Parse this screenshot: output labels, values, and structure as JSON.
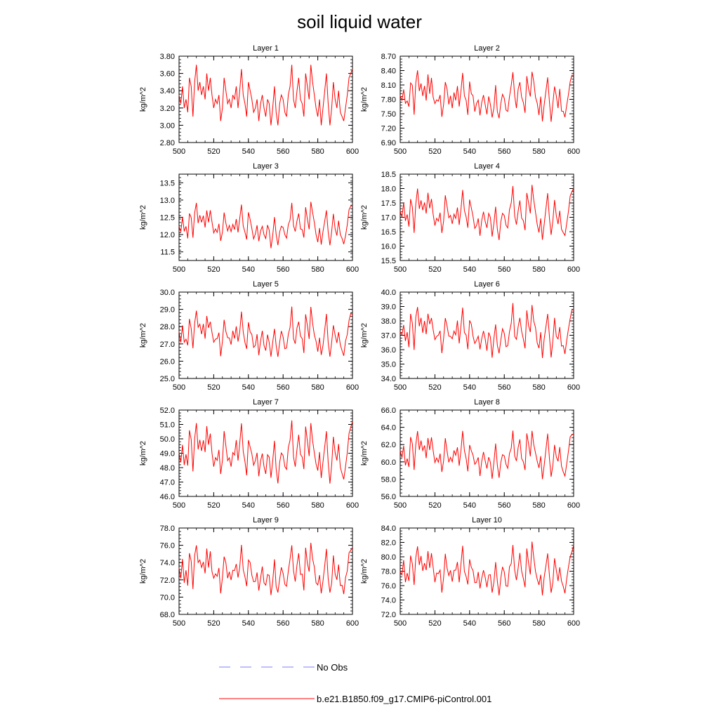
{
  "title": "soil liquid water",
  "colors": {
    "series": "#ff0000",
    "obs": "#7f7fff",
    "axis": "#000000"
  },
  "legend": {
    "obs_label": "No Obs",
    "model_label": "b.e21.B1850.f09_g17.CMIP6-piControl.001"
  },
  "chart_data": [
    {
      "type": "line",
      "title": "Layer 1",
      "ylabel": "kg/m^2",
      "xlim": [
        500,
        600
      ],
      "ylim": [
        2.8,
        3.8
      ],
      "xticks": [
        500,
        520,
        540,
        560,
        580,
        600
      ],
      "xtick_labels": [
        "500",
        "520",
        "540",
        "560",
        "580",
        "600"
      ],
      "yticks": [
        2.8,
        3.0,
        3.2,
        3.4,
        3.6,
        3.8
      ],
      "ytick_labels": [
        "2.80",
        "3.00",
        "3.20",
        "3.40",
        "3.60",
        "3.80"
      ],
      "x_start": 500,
      "values": [
        3.35,
        3.25,
        3.45,
        3.2,
        3.3,
        3.15,
        3.55,
        3.45,
        3.1,
        3.5,
        3.7,
        3.4,
        3.5,
        3.35,
        3.45,
        3.3,
        3.6,
        3.4,
        3.55,
        3.35,
        3.2,
        3.3,
        3.25,
        3.35,
        3.05,
        3.2,
        3.55,
        3.4,
        3.25,
        3.3,
        3.2,
        3.35,
        3.3,
        3.45,
        3.2,
        3.4,
        3.65,
        3.35,
        3.25,
        3.1,
        3.5,
        3.4,
        3.3,
        3.15,
        3.2,
        3.3,
        3.05,
        3.25,
        3.35,
        3.2,
        3.1,
        3.3,
        3.25,
        3.0,
        3.2,
        3.45,
        3.15,
        3.0,
        3.25,
        3.35,
        3.3,
        3.15,
        3.1,
        3.35,
        3.45,
        3.7,
        3.3,
        3.2,
        3.4,
        3.55,
        3.3,
        3.25,
        3.1,
        3.6,
        3.45,
        3.3,
        3.7,
        3.5,
        3.35,
        3.2,
        3.1,
        3.3,
        3.0,
        3.2,
        3.4,
        3.6,
        3.25,
        3.0,
        3.2,
        3.5,
        3.3,
        3.2,
        3.4,
        3.15,
        3.1,
        3.05,
        3.2,
        3.35,
        3.55,
        3.6,
        3.65
      ]
    }
  ]
}
